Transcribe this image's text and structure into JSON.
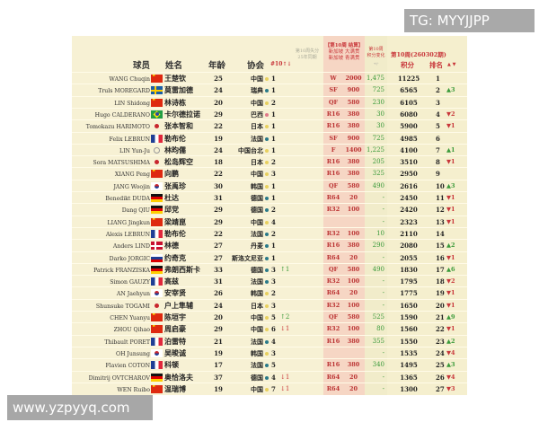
{
  "header": {
    "player": "球员",
    "name": "姓名",
    "age": "年龄",
    "assoc": "协会",
    "assoc_rank": "#10↑↓",
    "faint_note": "第10周失分 25年同期",
    "event_title": "【第10周 结算】",
    "event_line1": "新加坡 大满贯",
    "event_line2": "新加坡 青满贯",
    "change_title": "第10周",
    "change_sub": "积分变化",
    "change_unit": "+/-",
    "week_title": "第10周(260302期)",
    "points": "积分",
    "rank": "排名",
    "rank_arrows": "▲ ▼"
  },
  "colors": {
    "asia_dot": "#e8d060",
    "europe_dot": "#2a7a8a",
    "america_dot": "#e07a8a",
    "up": "#3a9a3a",
    "down": "#c8363a"
  },
  "rows": [
    {
      "en": "WANG Chuqin",
      "flag": "cn",
      "zh": "王楚钦",
      "age": "25",
      "assoc": "中国",
      "dot": "asia",
      "arank": "1",
      "achg": "",
      "round": "W",
      "rpts": "2000",
      "pchg": "1,475",
      "pts": "11225",
      "rank": "1",
      "rchg": ""
    },
    {
      "en": "Truls MOREGARD",
      "flag": "se",
      "zh": "莫雷加德",
      "age": "24",
      "assoc": "瑞典",
      "dot": "europe",
      "arank": "1",
      "achg": "",
      "round": "SF",
      "rpts": "900",
      "pchg": "725",
      "pts": "6565",
      "rank": "2",
      "rchg": "▲3"
    },
    {
      "en": "LIN Shidong",
      "flag": "cn",
      "zh": "林诗栋",
      "age": "20",
      "assoc": "中国",
      "dot": "asia",
      "arank": "2",
      "achg": "",
      "round": "QF",
      "rpts": "580",
      "pchg": "230",
      "pts": "6105",
      "rank": "3",
      "rchg": ""
    },
    {
      "en": "Hugo CALDERANO",
      "flag": "br",
      "zh": "卡尔德拉诺",
      "age": "29",
      "assoc": "巴西",
      "dot": "america",
      "arank": "1",
      "achg": "",
      "round": "R16",
      "rpts": "380",
      "pchg": "30",
      "pts": "6080",
      "rank": "4",
      "rchg": "▼2"
    },
    {
      "en": "Tomokazu HARIMOTO",
      "flag": "jp",
      "zh": "张本智和",
      "age": "22",
      "assoc": "日本",
      "dot": "asia",
      "arank": "1",
      "achg": "",
      "round": "R16",
      "rpts": "380",
      "pchg": "30",
      "pts": "5900",
      "rank": "5",
      "rchg": "▼1"
    },
    {
      "en": "Felix LEBRUN",
      "flag": "fr",
      "zh": "勒布伦",
      "age": "19",
      "assoc": "法国",
      "dot": "europe",
      "arank": "1",
      "achg": "",
      "round": "SF",
      "rpts": "900",
      "pchg": "725",
      "pts": "4985",
      "rank": "6",
      "rchg": ""
    },
    {
      "en": "LIN Yun-Ju",
      "flag": "tpe",
      "zh": "林昀儒",
      "age": "24",
      "assoc": "中国台北",
      "dot": "asia",
      "arank": "1",
      "achg": "",
      "round": "F",
      "rpts": "1400",
      "pchg": "1,225",
      "pts": "4100",
      "rank": "7",
      "rchg": "▲1"
    },
    {
      "en": "Sora MATSUSHIMA",
      "flag": "jp",
      "zh": "松岛辉空",
      "age": "18",
      "assoc": "日本",
      "dot": "asia",
      "arank": "2",
      "achg": "",
      "round": "R16",
      "rpts": "380",
      "pchg": "205",
      "pts": "3510",
      "rank": "8",
      "rchg": "▼1"
    },
    {
      "en": "XIANG Peng",
      "flag": "cn",
      "zh": "向鹏",
      "age": "22",
      "assoc": "中国",
      "dot": "asia",
      "arank": "3",
      "achg": "",
      "round": "R16",
      "rpts": "380",
      "pchg": "325",
      "pts": "2950",
      "rank": "9",
      "rchg": ""
    },
    {
      "en": "JANG Woojin",
      "flag": "kr",
      "zh": "张禹珍",
      "age": "30",
      "assoc": "韩国",
      "dot": "asia",
      "arank": "1",
      "achg": "",
      "round": "QF",
      "rpts": "580",
      "pchg": "490",
      "pts": "2616",
      "rank": "10",
      "rchg": "▲3"
    },
    {
      "en": "Benedikt DUDA",
      "flag": "de",
      "zh": "杜达",
      "age": "31",
      "assoc": "德国",
      "dot": "europe",
      "arank": "1",
      "achg": "",
      "round": "R64",
      "rpts": "20",
      "pchg": "-",
      "pts": "2450",
      "rank": "11",
      "rchg": "▼1"
    },
    {
      "en": "Dang QIU",
      "flag": "de",
      "zh": "邱党",
      "age": "29",
      "assoc": "德国",
      "dot": "europe",
      "arank": "2",
      "achg": "",
      "round": "R32",
      "rpts": "100",
      "pchg": "-",
      "pts": "2420",
      "rank": "12",
      "rchg": "▼1"
    },
    {
      "en": "LIANG Jingkun",
      "flag": "cn",
      "zh": "梁靖崑",
      "age": "29",
      "assoc": "中国",
      "dot": "asia",
      "arank": "4",
      "achg": "",
      "round": "",
      "rpts": "",
      "pchg": "-",
      "pts": "2323",
      "rank": "13",
      "rchg": "▼1"
    },
    {
      "en": "Alexis LEBRUN",
      "flag": "fr",
      "zh": "勒布伦",
      "age": "22",
      "assoc": "法国",
      "dot": "europe",
      "arank": "2",
      "achg": "",
      "round": "R32",
      "rpts": "100",
      "pchg": "10",
      "pts": "2110",
      "rank": "14",
      "rchg": ""
    },
    {
      "en": "Anders LIND",
      "flag": "dk",
      "zh": "林德",
      "age": "27",
      "assoc": "丹麦",
      "dot": "europe",
      "arank": "1",
      "achg": "",
      "round": "R16",
      "rpts": "380",
      "pchg": "290",
      "pts": "2080",
      "rank": "15",
      "rchg": "▲2"
    },
    {
      "en": "Darko JORGIC",
      "flag": "si",
      "zh": "约奇克",
      "age": "27",
      "assoc": "斯洛文尼亚",
      "dot": "europe",
      "arank": "1",
      "achg": "",
      "round": "R64",
      "rpts": "20",
      "pchg": "-",
      "pts": "2055",
      "rank": "16",
      "rchg": "▼1"
    },
    {
      "en": "Patrick FRANZISKA",
      "flag": "de",
      "zh": "弗朗西斯卡",
      "age": "33",
      "assoc": "德国",
      "dot": "europe",
      "arank": "3",
      "achg": "↑1",
      "round": "QF",
      "rpts": "580",
      "pchg": "490",
      "pts": "1830",
      "rank": "17",
      "rchg": "▲6"
    },
    {
      "en": "Simon GAUZY",
      "flag": "fr",
      "zh": "高兹",
      "age": "31",
      "assoc": "法国",
      "dot": "europe",
      "arank": "3",
      "achg": "",
      "round": "R32",
      "rpts": "100",
      "pchg": "-",
      "pts": "1795",
      "rank": "18",
      "rchg": "▼2"
    },
    {
      "en": "AN Jaehyun",
      "flag": "kr",
      "zh": "安宰贤",
      "age": "26",
      "assoc": "韩国",
      "dot": "asia",
      "arank": "2",
      "achg": "",
      "round": "R64",
      "rpts": "20",
      "pchg": "-",
      "pts": "1775",
      "rank": "19",
      "rchg": "▼1"
    },
    {
      "en": "Shunsuke TOGAMI",
      "flag": "jp",
      "zh": "户上隼辅",
      "age": "24",
      "assoc": "日本",
      "dot": "asia",
      "arank": "3",
      "achg": "",
      "round": "R32",
      "rpts": "100",
      "pchg": "-",
      "pts": "1650",
      "rank": "20",
      "rchg": "▼1"
    },
    {
      "en": "CHEN Yuanyu",
      "flag": "cn",
      "zh": "陈垣宇",
      "age": "20",
      "assoc": "中国",
      "dot": "asia",
      "arank": "5",
      "achg": "↑2",
      "round": "QF",
      "rpts": "580",
      "pchg": "525",
      "pts": "1590",
      "rank": "21",
      "rchg": "▲9"
    },
    {
      "en": "ZHOU Qihao",
      "flag": "cn",
      "zh": "周启豪",
      "age": "29",
      "assoc": "中国",
      "dot": "asia",
      "arank": "6",
      "achg": "↓1",
      "round": "R32",
      "rpts": "100",
      "pchg": "80",
      "pts": "1560",
      "rank": "22",
      "rchg": "▼1"
    },
    {
      "en": "Thibault PORET",
      "flag": "fr",
      "zh": "泊雷特",
      "age": "21",
      "assoc": "法国",
      "dot": "europe",
      "arank": "4",
      "achg": "",
      "round": "R16",
      "rpts": "380",
      "pchg": "355",
      "pts": "1550",
      "rank": "23",
      "rchg": "▲2"
    },
    {
      "en": "OH Junsung",
      "flag": "kr",
      "zh": "吴晙诚",
      "age": "19",
      "assoc": "韩国",
      "dot": "asia",
      "arank": "3",
      "achg": "",
      "round": "",
      "rpts": "",
      "pchg": "-",
      "pts": "1535",
      "rank": "24",
      "rchg": "▼4"
    },
    {
      "en": "Flavien COTON",
      "flag": "fr",
      "zh": "科顿",
      "age": "17",
      "assoc": "法国",
      "dot": "europe",
      "arank": "5",
      "achg": "",
      "round": "R16",
      "rpts": "380",
      "pchg": "340",
      "pts": "1495",
      "rank": "25",
      "rchg": "▲3"
    },
    {
      "en": "Dimitrij OVTCHAROV",
      "flag": "de",
      "zh": "奥恰洛夫",
      "age": "37",
      "assoc": "德国",
      "dot": "europe",
      "arank": "4",
      "achg": "↓1",
      "round": "R64",
      "rpts": "20",
      "pchg": "-",
      "pts": "1365",
      "rank": "26",
      "rchg": "▼4"
    },
    {
      "en": "WEN Ruibo",
      "flag": "cn",
      "zh": "温瑞博",
      "age": "19",
      "assoc": "中国",
      "dot": "asia",
      "arank": "7",
      "achg": "↓1",
      "round": "R64",
      "rpts": "20",
      "pchg": "-",
      "pts": "1300",
      "rank": "27",
      "rchg": "▼3"
    }
  ],
  "watermarks": {
    "tg": "TG: MYYJJPP",
    "site": "www.yzpyyq.com"
  }
}
